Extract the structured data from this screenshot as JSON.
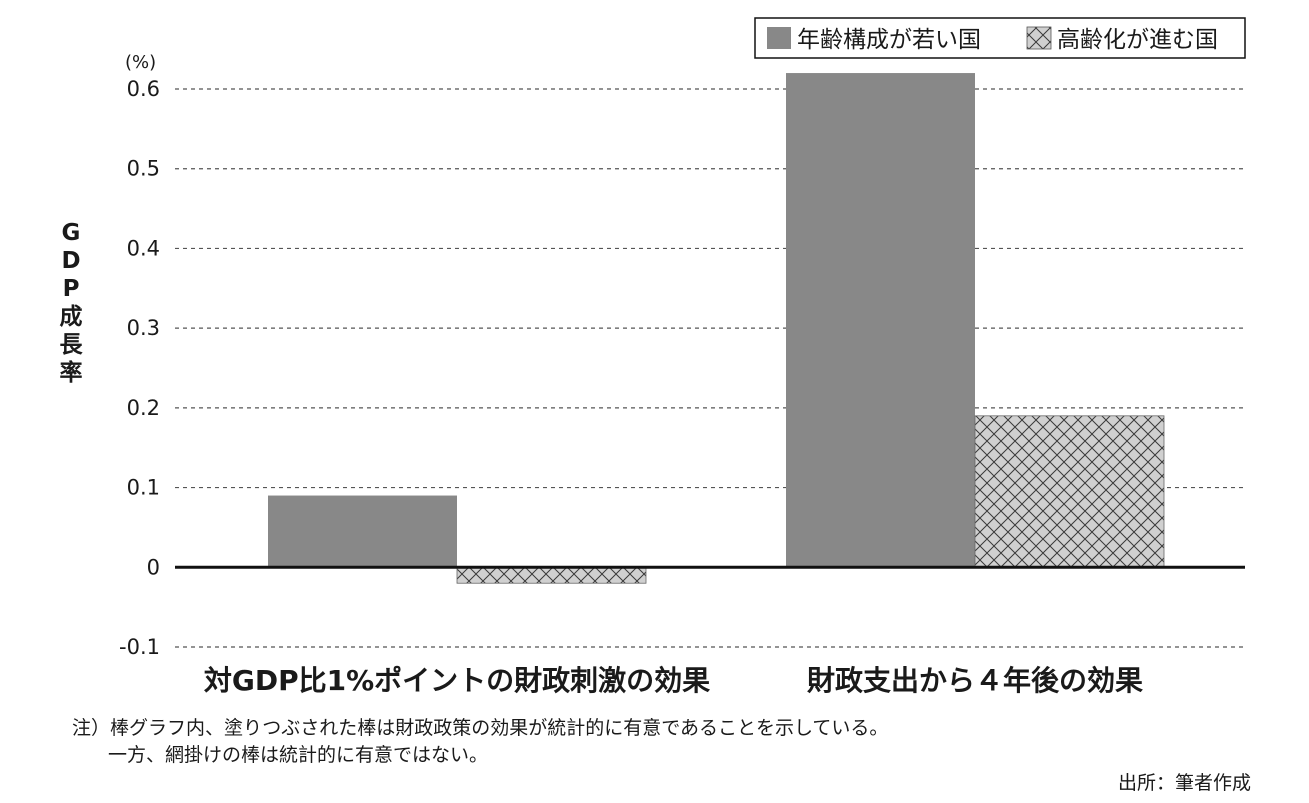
{
  "chart_data": {
    "type": "bar",
    "ylabel": "GDP成長率",
    "unit": "(%)",
    "ylim": [
      -0.1,
      0.6
    ],
    "yticks": [
      0.6,
      0.5,
      0.4,
      0.3,
      0.2,
      0.1,
      0,
      -0.1
    ],
    "ytick_labels": [
      "0.6",
      "0.5",
      "0.4",
      "0.3",
      "0.2",
      "0.1",
      "0",
      "-0.1"
    ],
    "grid": "horizontal dashed",
    "legend_position": "top-right",
    "categories": [
      "対GDP比1%ポイントの財政刺激の効果",
      "財政支出から４年後の効果"
    ],
    "series": [
      {
        "name": "年齢構成が若い国",
        "values": [
          0.09,
          0.62
        ],
        "color": "#888888",
        "pattern": "solid"
      },
      {
        "name": "高齢化が進む国",
        "values": [
          -0.02,
          0.19
        ],
        "color": "#d0d0d0",
        "pattern": "crosshatch"
      }
    ]
  },
  "notes": [
    "注）棒グラフ内、塗りつぶされた棒は財政政策の効果が統計的に有意であることを示している。",
    "一方、網掛けの棒は統計的に有意ではない。"
  ],
  "source": "出所：筆者作成"
}
